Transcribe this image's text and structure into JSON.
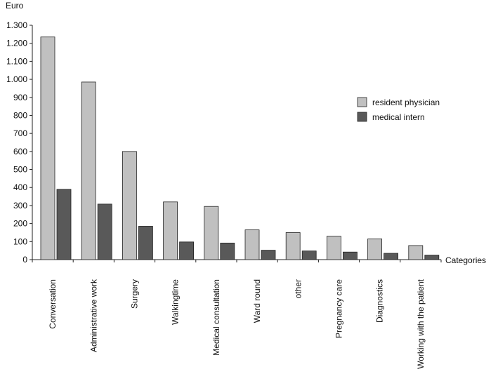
{
  "chart_data": {
    "type": "bar",
    "ylabel": "Euro",
    "xlabel": "Categories",
    "ylim": [
      0,
      1300
    ],
    "yticks": [
      0,
      100,
      200,
      300,
      400,
      500,
      600,
      700,
      800,
      900,
      1000,
      1100,
      1200,
      1300
    ],
    "ytick_labels": [
      "0",
      "100",
      "200",
      "300",
      "400",
      "500",
      "600",
      "700",
      "800",
      "900",
      "1.000",
      "1.100",
      "1.200",
      "1.300"
    ],
    "categories": [
      "Conversation",
      "Administrative work",
      "Surgery",
      "Walkingtime",
      "Medical consultation",
      "Ward round",
      "other",
      "Pregnancy care",
      "Diagnostics",
      "Working with the patient"
    ],
    "series": [
      {
        "name": "resident physician",
        "color": "#c0c0c0",
        "values": [
          1235,
          985,
          600,
          320,
          295,
          165,
          150,
          130,
          115,
          78
        ]
      },
      {
        "name": "medical intern",
        "color": "#595959",
        "values": [
          390,
          308,
          185,
          98,
          92,
          52,
          48,
          42,
          35,
          25
        ]
      }
    ],
    "grid": false,
    "legend": "right"
  }
}
